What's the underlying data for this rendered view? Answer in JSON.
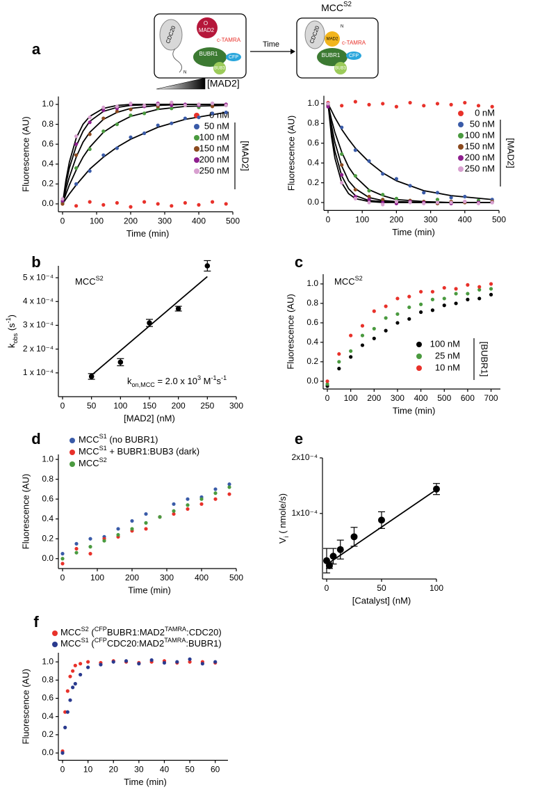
{
  "diagram": {
    "cdc20": "CDC20",
    "o": "O",
    "mad2": "MAD2",
    "ctamra": "c-TAMRA",
    "n": "N",
    "bubr1": "BUBR1",
    "cfp": "CFP",
    "bub3": "BUB3",
    "time": "Time",
    "mcc": [
      {
        "text": "MCC"
      },
      {
        "text": "S2",
        "shift": "sup"
      }
    ],
    "mad2_conc": "[MAD2]",
    "cdc20b": "CDC20",
    "mad2b": "MAD2",
    "ctamra2": "c-TAMRA",
    "n2": "N",
    "bubr1b": "BUBR1",
    "cfpb": "CFP",
    "bub3b": "BUB3"
  },
  "chart_data": [
    {
      "type": "scatter",
      "panel": "a",
      "xlabel": "Time (min)",
      "ylabel": "Fluorescence (AU)",
      "legend_title": "[MAD2]",
      "xlim": [
        0,
        500
      ],
      "xticks": [
        0,
        100,
        200,
        300,
        400,
        500
      ],
      "ylim": [
        -0.08,
        1.08
      ],
      "yticks": [
        {
          "value": 0,
          "label": "0.0"
        },
        0.2,
        0.4,
        0.6,
        0.8,
        {
          "value": 1,
          "label": "1.0"
        }
      ],
      "x": [
        0,
        40,
        80,
        120,
        160,
        200,
        240,
        280,
        320,
        360,
        400,
        440,
        480
      ],
      "series": [
        {
          "name": "0 nM",
          "color": "#e8312a",
          "values": [
            0.0,
            -0.02,
            0.02,
            -0.01,
            0.01,
            -0.03,
            0.02,
            0.0,
            -0.02,
            0.01,
            -0.01,
            0.02,
            0.0
          ]
        },
        {
          "name": "50 nM",
          "color": "#3a5ba8",
          "values": [
            0.01,
            0.2,
            0.33,
            0.49,
            0.56,
            0.67,
            0.71,
            0.79,
            0.81,
            0.86,
            0.87,
            0.91,
            0.92
          ]
        },
        {
          "name": "100 nM",
          "color": "#4a9a3f",
          "values": [
            0.02,
            0.36,
            0.55,
            0.73,
            0.8,
            0.89,
            0.91,
            0.96,
            0.96,
            0.99,
            0.97,
            1.0,
            0.99
          ]
        },
        {
          "name": "150 nM",
          "color": "#8b4a1f",
          "values": [
            0.0,
            0.49,
            0.7,
            0.86,
            0.93,
            0.95,
            0.99,
            0.98,
            1.01,
            0.99,
            1.0,
            0.98,
            1.0
          ]
        },
        {
          "name": "200 nM",
          "color": "#8e1f8e",
          "values": [
            0.03,
            0.6,
            0.82,
            0.94,
            0.96,
            1.0,
            0.98,
            1.01,
            0.99,
            1.0,
            0.99,
            1.01,
            1.0
          ]
        },
        {
          "name": "250 nM",
          "color": "#d8a0d0",
          "values": [
            0.05,
            0.68,
            0.87,
            0.97,
            0.98,
            1.01,
            0.99,
            1.0,
            1.02,
            0.99,
            1.0,
            1.01,
            0.99
          ]
        }
      ],
      "fit_color": "#000000",
      "fit_x": [
        0,
        10,
        20,
        40,
        60,
        80,
        120,
        160,
        200,
        280,
        360,
        480
      ],
      "fits": [
        {
          "values": [
            0,
            0.05,
            0.1,
            0.19,
            0.27,
            0.35,
            0.47,
            0.57,
            0.65,
            0.77,
            0.85,
            0.92
          ]
        },
        {
          "values": [
            0,
            0.1,
            0.19,
            0.34,
            0.47,
            0.57,
            0.72,
            0.81,
            0.88,
            0.95,
            0.98,
            0.99
          ]
        },
        {
          "values": [
            0,
            0.15,
            0.27,
            0.47,
            0.62,
            0.72,
            0.85,
            0.92,
            0.96,
            0.99,
            1.0,
            1.0
          ]
        },
        {
          "values": [
            0,
            0.2,
            0.36,
            0.58,
            0.73,
            0.83,
            0.93,
            0.97,
            0.99,
            1.0,
            1.0,
            1.0
          ]
        },
        {
          "values": [
            0,
            0.24,
            0.42,
            0.66,
            0.8,
            0.88,
            0.96,
            0.99,
            1.0,
            1.0,
            1.0,
            1.0
          ]
        }
      ]
    },
    {
      "type": "scatter",
      "xlabel": "Time (min)",
      "ylabel": "Fluorescence (AU)",
      "legend_title": "[MAD2]",
      "xlim": [
        0,
        500
      ],
      "xticks": [
        0,
        100,
        200,
        300,
        400,
        500
      ],
      "ylim": [
        -0.08,
        1.08
      ],
      "yticks": [
        {
          "value": 0,
          "label": "0.0"
        },
        0.2,
        0.4,
        0.6,
        0.8,
        {
          "value": 1,
          "label": "1.0"
        }
      ],
      "x": [
        0,
        40,
        80,
        120,
        160,
        200,
        240,
        280,
        320,
        360,
        400,
        440,
        480
      ],
      "series": [
        {
          "name": "0 nM",
          "color": "#e8312a",
          "values": [
            1.01,
            0.98,
            1.02,
            0.99,
            1.0,
            0.97,
            1.01,
            0.98,
            1.0,
            0.99,
            1.01,
            0.98,
            0.97
          ]
        },
        {
          "name": "50 nM",
          "color": "#3a5ba8",
          "values": [
            1.0,
            0.76,
            0.53,
            0.42,
            0.29,
            0.24,
            0.17,
            0.1,
            0.1,
            0.05,
            0.06,
            0.02,
            0.03
          ]
        },
        {
          "name": "100 nM",
          "color": "#4a9a3f",
          "values": [
            0.98,
            0.49,
            0.27,
            0.12,
            0.08,
            0.04,
            0.02,
            0.0,
            0.03,
            0.01,
            0.0,
            0.02,
            0.01
          ]
        },
        {
          "name": "150 nM",
          "color": "#8b4a1f",
          "values": [
            0.99,
            0.38,
            0.13,
            0.06,
            0.03,
            0.0,
            0.02,
            0.01,
            -0.01,
            0.01,
            0.0,
            0.0,
            0.01
          ]
        },
        {
          "name": "200 nM",
          "color": "#8e1f8e",
          "values": [
            0.97,
            0.28,
            0.06,
            0.03,
            0.0,
            -0.01,
            0.01,
            0.0,
            0.0,
            -0.01,
            0.01,
            0.0,
            0.0
          ]
        },
        {
          "name": "250 nM",
          "color": "#d8a0d0",
          "values": [
            1.0,
            0.2,
            0.04,
            0.0,
            -0.02,
            0.01,
            0.0,
            -0.01,
            0.0,
            0.0,
            0.01,
            -0.01,
            0.0
          ]
        }
      ],
      "fit_color": "#000000",
      "fit_x": [
        0,
        10,
        20,
        40,
        60,
        80,
        120,
        160,
        200,
        280,
        360,
        480
      ],
      "fits": [
        {
          "values": [
            1,
            0.93,
            0.86,
            0.74,
            0.64,
            0.55,
            0.41,
            0.3,
            0.22,
            0.12,
            0.07,
            0.03
          ]
        },
        {
          "values": [
            1,
            0.84,
            0.71,
            0.51,
            0.36,
            0.26,
            0.13,
            0.07,
            0.03,
            0.01,
            0,
            0
          ]
        },
        {
          "values": [
            1,
            0.78,
            0.61,
            0.37,
            0.22,
            0.14,
            0.05,
            0.02,
            0.01,
            0,
            0,
            0
          ]
        },
        {
          "values": [
            1,
            0.72,
            0.52,
            0.27,
            0.14,
            0.07,
            0.02,
            0.01,
            0,
            0,
            0,
            0
          ]
        },
        {
          "values": [
            1,
            0.67,
            0.45,
            0.2,
            0.09,
            0.04,
            0.01,
            0,
            0,
            0,
            0,
            0
          ]
        }
      ]
    },
    {
      "type": "errorbar",
      "panel": "b",
      "xlabel": "[MAD2] (nM)",
      "ylabel": [
        {
          "text": "k"
        },
        {
          "text": "obs",
          "shift": "sub"
        },
        {
          "text": " (s"
        },
        {
          "text": "-1",
          "shift": "sup"
        },
        {
          "text": ")"
        }
      ],
      "annotations": [
        [
          {
            "text": "MCC"
          },
          {
            "text": "S2",
            "shift": "sup"
          }
        ],
        [
          {
            "text": "k"
          },
          {
            "text": "on,MCC",
            "shift": "sub"
          },
          {
            "text": " = 2.0 x 10"
          },
          {
            "text": "3",
            "shift": "sup"
          },
          {
            "text": " M"
          },
          {
            "text": "-1",
            "shift": "sup"
          },
          {
            "text": "s"
          },
          {
            "text": "-1",
            "shift": "sup"
          }
        ]
      ],
      "xlim": [
        0,
        300
      ],
      "xticks": [
        0,
        50,
        100,
        150,
        200,
        250,
        300
      ],
      "ylim": [
        0,
        0.00055
      ],
      "yticks": [
        {
          "value": 0.0001,
          "label": "1 x 10⁻⁴"
        },
        {
          "value": 0.0002,
          "label": "2 x 10⁻⁴"
        },
        {
          "value": 0.0003,
          "label": "3 x 10⁻⁴"
        },
        {
          "value": 0.0004,
          "label": "4 x 10⁻⁴"
        },
        {
          "value": 0.0005,
          "label": "5 x 10⁻⁴"
        }
      ],
      "color": "#000000",
      "x": [
        50,
        100,
        150,
        200,
        250
      ],
      "values": [
        8.5e-05,
        0.000145,
        0.00031,
        0.00037,
        0.00055
      ],
      "errors": [
        1.2e-05,
        1.5e-05,
        1.5e-05,
        1e-05,
        2.2e-05
      ],
      "fit_color": "#000000",
      "fit_x": [
        50,
        250
      ],
      "fits": [
        {
          "values": [
            9e-05,
            0.000505
          ]
        }
      ]
    },
    {
      "type": "scatter",
      "panel": "c",
      "xlabel": "Time (min)",
      "ylabel": "Fluorescence (AU)",
      "legend_title": "[BUBR1]",
      "annotations": [
        [
          {
            "text": "MCC"
          },
          {
            "text": "S2",
            "shift": "sup"
          }
        ]
      ],
      "xlim": [
        0,
        740
      ],
      "xticks": [
        0,
        100,
        200,
        300,
        400,
        500,
        600,
        700
      ],
      "ylim": [
        -0.08,
        1.1
      ],
      "yticks": [
        {
          "value": 0,
          "label": "0.0"
        },
        0.2,
        0.4,
        0.6,
        0.8,
        {
          "value": 1,
          "label": "1.0"
        }
      ],
      "x": [
        0,
        50,
        100,
        150,
        200,
        250,
        300,
        350,
        400,
        450,
        500,
        550,
        600,
        650,
        700
      ],
      "series": [
        {
          "name": "100 nM",
          "color": "#000000",
          "values": [
            -0.05,
            0.13,
            0.25,
            0.37,
            0.44,
            0.52,
            0.6,
            0.64,
            0.71,
            0.73,
            0.78,
            0.8,
            0.84,
            0.85,
            0.89
          ]
        },
        {
          "name": "25 nM",
          "color": "#4a9a3f",
          "values": [
            -0.03,
            0.2,
            0.31,
            0.47,
            0.54,
            0.65,
            0.69,
            0.76,
            0.79,
            0.84,
            0.85,
            0.9,
            0.9,
            0.94,
            0.95
          ]
        },
        {
          "name": "10 nM",
          "color": "#e8312a",
          "values": [
            0.0,
            0.28,
            0.47,
            0.57,
            0.72,
            0.77,
            0.85,
            0.87,
            0.92,
            0.92,
            0.96,
            0.95,
            0.99,
            0.97,
            1.0
          ]
        }
      ]
    },
    {
      "type": "scatter",
      "panel": "d",
      "xlabel": "Time (min)",
      "ylabel": "Fluorescence (AU)",
      "xlim": [
        0,
        500
      ],
      "xticks": [
        0,
        100,
        200,
        300,
        400,
        500
      ],
      "ylim": [
        -0.1,
        1.05
      ],
      "yticks": [
        {
          "value": 0,
          "label": "0.0"
        },
        0.2,
        0.4,
        0.6,
        0.8,
        {
          "value": 1,
          "label": "1.0"
        }
      ],
      "x": [
        0,
        40,
        80,
        120,
        160,
        200,
        240,
        280,
        320,
        360,
        400,
        440,
        480
      ],
      "series": [
        {
          "name": [
            {
              "text": "MCC"
            },
            {
              "text": "S1",
              "shift": "sup"
            },
            {
              "text": " (no BUBR1)"
            }
          ],
          "color": "#3a5ba8",
          "values": [
            0.05,
            0.15,
            0.2,
            0.22,
            0.3,
            0.38,
            0.45,
            0.42,
            0.55,
            0.6,
            0.62,
            0.7,
            0.75
          ]
        },
        {
          "name": [
            {
              "text": "MCC"
            },
            {
              "text": "S1",
              "shift": "sup"
            },
            {
              "text": " + BUBR1:BUB3 (dark)"
            }
          ],
          "color": "#e8312a",
          "values": [
            -0.05,
            0.1,
            0.05,
            0.2,
            0.22,
            0.28,
            0.3,
            0.42,
            0.45,
            0.5,
            0.55,
            0.6,
            0.65
          ]
        },
        {
          "name": [
            {
              "text": "MCC"
            },
            {
              "text": "S2",
              "shift": "sup"
            }
          ],
          "color": "#4a9a3f",
          "values": [
            0.0,
            0.06,
            0.12,
            0.18,
            0.24,
            0.3,
            0.36,
            0.42,
            0.48,
            0.54,
            0.6,
            0.66,
            0.72
          ]
        }
      ]
    },
    {
      "type": "errorbar",
      "panel": "e",
      "xlabel": "[Catalyst] (nM)",
      "ylabel": [
        {
          "text": "V"
        },
        {
          "text": "i",
          "shift": "sub"
        },
        {
          "text": " ( nmole/s)"
        }
      ],
      "xlim": [
        0,
        100
      ],
      "xticks": [
        0,
        50,
        100
      ],
      "ylim": [
        -1.8e-05,
        0.0002
      ],
      "yticks": [
        {
          "value": 0.0001,
          "label": "1x10⁻⁴"
        },
        {
          "value": 0.0002,
          "label": "2x10⁻⁴"
        }
      ],
      "color": "#000000",
      "x": [
        0,
        2.5,
        6,
        12.5,
        25,
        50,
        100
      ],
      "values": [
        1.5e-05,
        6e-06,
        2.3e-05,
        3.5e-05,
        5.8e-05,
        8.8e-05,
        0.000144
      ],
      "errors": [
        2.2e-05,
        5e-06,
        1.4e-05,
        1.7e-05,
        1.7e-05,
        1.5e-05,
        1e-05
      ],
      "fit_color": "#000000",
      "fit_x": [
        0,
        100
      ],
      "fits": [
        {
          "values": [
            8e-06,
            0.000143
          ]
        }
      ]
    },
    {
      "type": "scatter",
      "panel": "f",
      "xlabel": "Time (min)",
      "ylabel": "Fluorescence (AU)",
      "xlim": [
        0,
        65
      ],
      "xticks": [
        0,
        10,
        20,
        30,
        40,
        50,
        60
      ],
      "ylim": [
        -0.08,
        1.1
      ],
      "yticks": [
        {
          "value": 0,
          "label": "0.0"
        },
        0.2,
        0.4,
        0.6,
        0.8,
        {
          "value": 1,
          "label": "1.0"
        }
      ],
      "x": [
        0,
        1,
        2,
        3,
        4,
        5,
        7,
        10,
        15,
        20,
        25,
        30,
        35,
        40,
        45,
        50,
        55,
        60
      ],
      "series": [
        {
          "name": [
            {
              "text": "MCC"
            },
            {
              "text": "S2",
              "shift": "sup"
            },
            {
              "text": " ("
            },
            {
              "text": "CFP",
              "shift": "sup"
            },
            {
              "text": "BUBR1:MAD2"
            },
            {
              "text": "TAMRA",
              "shift": "sup"
            },
            {
              "text": ":CDC20)"
            }
          ],
          "color": "#e8312a",
          "values": [
            0.02,
            0.45,
            0.68,
            0.84,
            0.9,
            0.96,
            0.98,
            1.0,
            0.99,
            1.01,
            1.0,
            0.99,
            1.0,
            1.01,
            0.99,
            1.0,
            1.0,
            0.99
          ]
        },
        {
          "name": [
            {
              "text": "MCC"
            },
            {
              "text": "S1",
              "shift": "sup"
            },
            {
              "text": " ("
            },
            {
              "text": "CFP",
              "shift": "sup"
            },
            {
              "text": "CDC20:MAD2"
            },
            {
              "text": "TAMRA",
              "shift": "sup"
            },
            {
              "text": ":BUBR1)"
            }
          ],
          "color": "#2a3a8e",
          "values": [
            0.0,
            0.28,
            0.45,
            0.58,
            0.72,
            0.76,
            0.86,
            0.94,
            0.97,
            1.0,
            1.01,
            0.98,
            1.02,
            0.99,
            1.0,
            1.03,
            0.98,
            1.0
          ]
        }
      ]
    }
  ]
}
